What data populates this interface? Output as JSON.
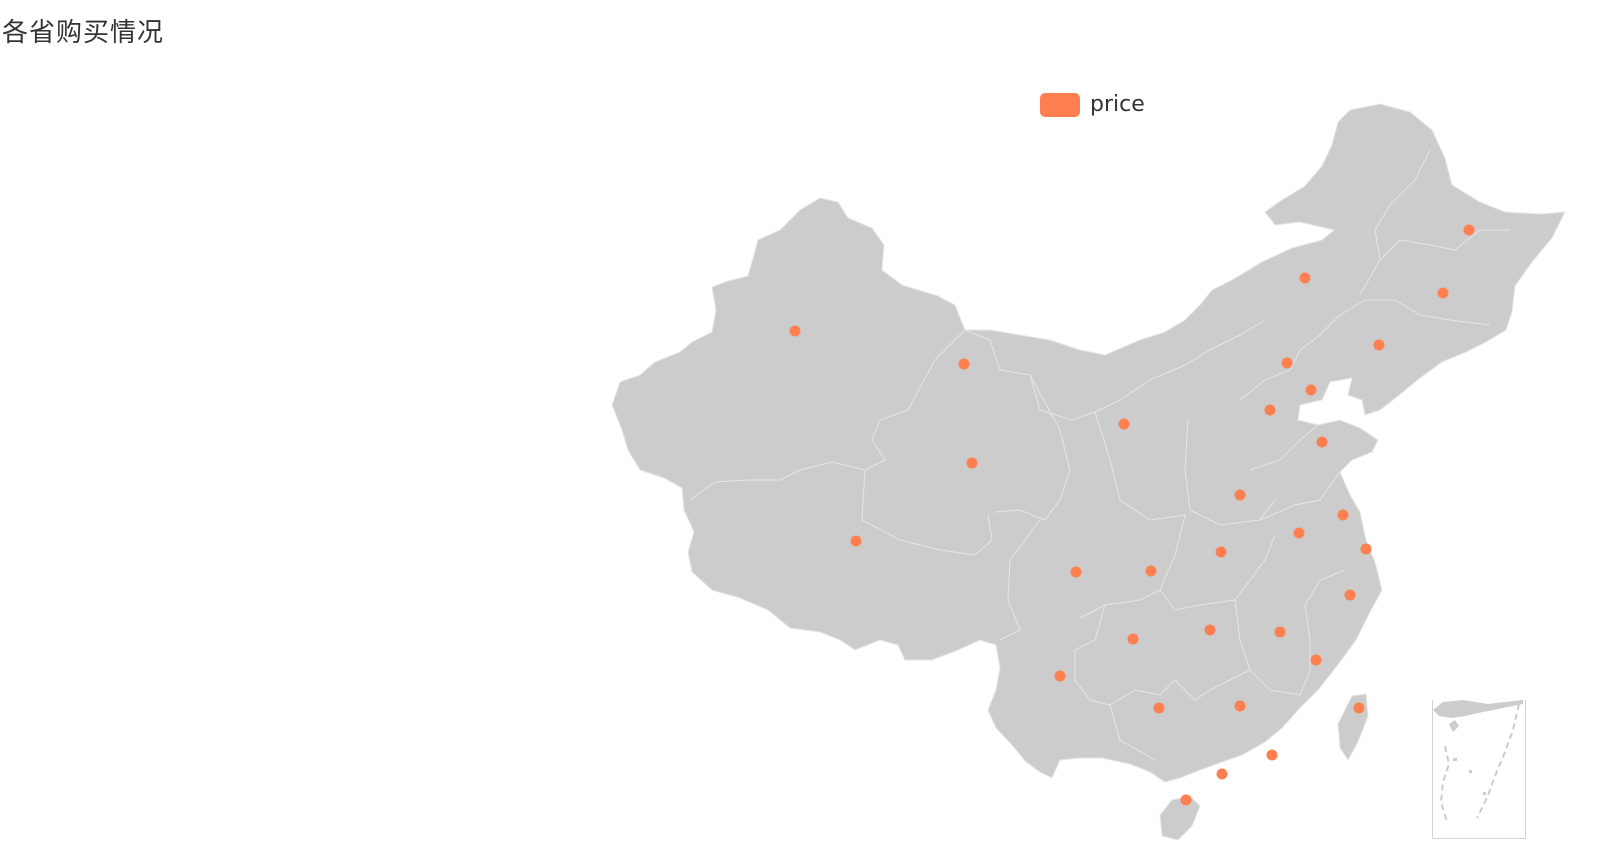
{
  "title": "各省购买情况",
  "legend": {
    "label": "price",
    "color": "#ff7f50"
  },
  "colors": {
    "land": "#cccccc",
    "border": "#e6e6e6",
    "point": "#ff7f50"
  },
  "map": {
    "region": "China",
    "type": "scatter-on-map",
    "marker_count": 34
  }
}
